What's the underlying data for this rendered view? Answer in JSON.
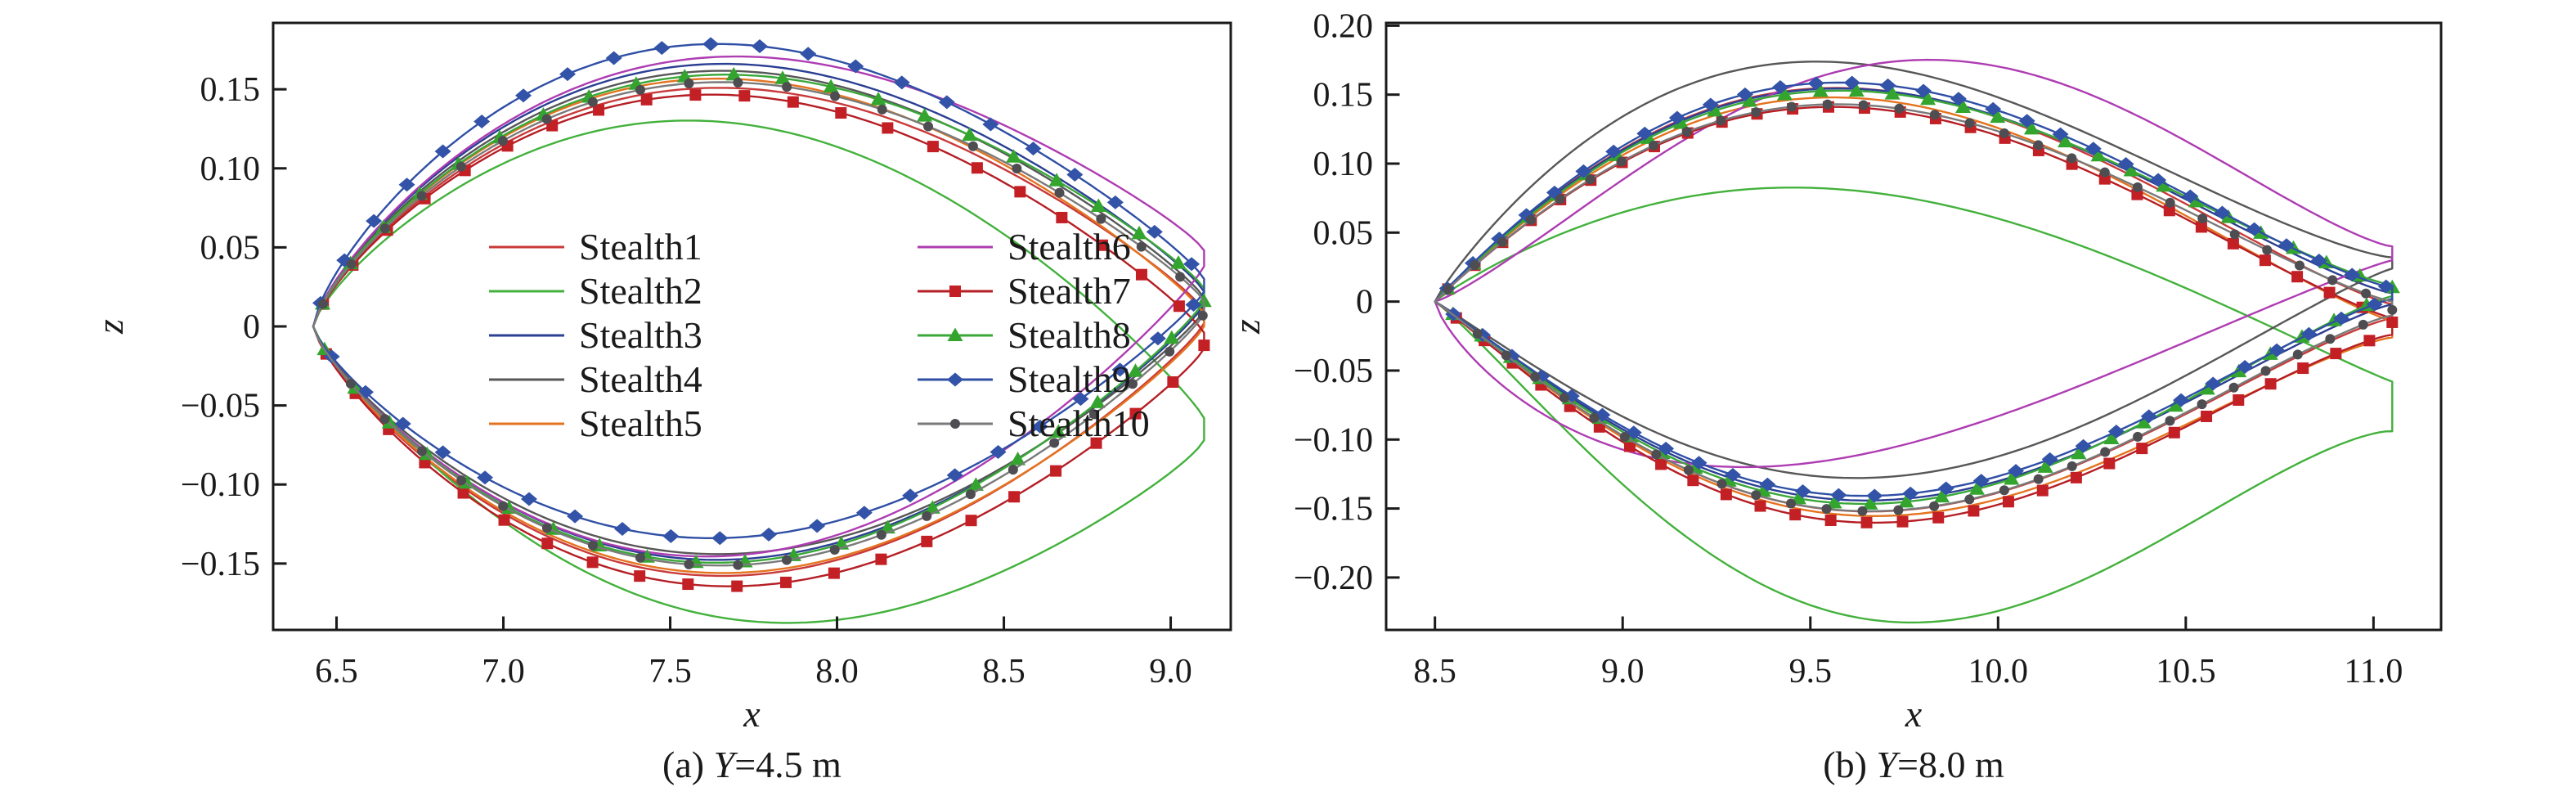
{
  "figure": {
    "background": "#ffffff",
    "text_color": "#1a1a1a",
    "frame_color": "#1a1a1a"
  },
  "chart_data": [
    {
      "id": "a",
      "type": "line",
      "caption": {
        "prefix": "(a) ",
        "symbol": "Y",
        "rest": "=4.5 m"
      },
      "xlabel": "x",
      "ylabel": "z",
      "xlim": [
        6.31,
        9.18
      ],
      "ylim": [
        -0.192,
        0.192
      ],
      "grid": false,
      "xticks": [
        {
          "v": 6.5,
          "label": "6.5"
        },
        {
          "v": 7.0,
          "label": "7.0"
        },
        {
          "v": 7.5,
          "label": "7.5"
        },
        {
          "v": 8.0,
          "label": "8.0"
        },
        {
          "v": 8.5,
          "label": "8.5"
        },
        {
          "v": 9.0,
          "label": "9.0"
        }
      ],
      "yticks": [
        {
          "v": 0.15,
          "label": "0.15"
        },
        {
          "v": 0.1,
          "label": "0.10"
        },
        {
          "v": 0.05,
          "label": "0.05"
        },
        {
          "v": 0,
          "label": "0"
        },
        {
          "v": -0.05,
          "label": "−0.05"
        },
        {
          "v": -0.1,
          "label": "−0.10"
        },
        {
          "v": -0.15,
          "label": "−0.15"
        }
      ],
      "legend": {
        "show": true,
        "columns": 2,
        "position": "inside-center"
      },
      "outline_model": "airfoil section outline: x(t)=x_le+(x_te-x_le)*t ; z(t)=z_peak*sin(pi*t^a)^sharp + z_te*t^3, a=ln(0.5)/ln(peak_frac)",
      "x_le": 6.43,
      "x_te": 9.1,
      "defaults": {
        "up_frac": 0.45,
        "lo_frac": 0.46,
        "up_sharp": 0.85,
        "lo_sharp": 0.85
      },
      "marker_spacing_px": 60,
      "series": [
        {
          "name": "Stealth1",
          "color": "#c93a3a",
          "marker": "none",
          "z_up_max": 0.15,
          "z_lo_min": -0.158,
          "z_te_up": 0.01,
          "z_te_lo": 0.002
        },
        {
          "name": "Stealth2",
          "color": "#43b13c",
          "marker": "none",
          "z_up_max": 0.135,
          "z_lo_min": -0.178,
          "z_te_up": -0.058,
          "z_te_lo": -0.072,
          "lo_frac": 0.49
        },
        {
          "name": "Stealth3",
          "color": "#2b3f93",
          "marker": "none",
          "z_up_max": 0.164,
          "z_lo_min": -0.149,
          "z_te_up": 0.022,
          "z_te_lo": 0.014
        },
        {
          "name": "Stealth4",
          "color": "#575757",
          "marker": "none",
          "z_up_max": 0.16,
          "z_lo_min": -0.145,
          "z_te_up": 0.018,
          "z_te_lo": 0.01
        },
        {
          "name": "Stealth5",
          "color": "#e4731f",
          "marker": "none",
          "z_up_max": 0.156,
          "z_lo_min": -0.156,
          "z_te_up": 0.008,
          "z_te_lo": 0.0
        },
        {
          "name": "Stealth6",
          "color": "#ae3cb2",
          "marker": "none",
          "z_up_max": 0.166,
          "z_lo_min": -0.149,
          "z_te_up": 0.048,
          "z_te_lo": 0.038
        },
        {
          "name": "Stealth7",
          "color": "#b51e24",
          "marker": "square",
          "marker_color": "#c32026",
          "z_up_max": 0.147,
          "z_lo_min": -0.163,
          "z_te_up": -0.004,
          "z_te_lo": -0.014
        },
        {
          "name": "Stealth8",
          "color": "#3aa739",
          "marker": "triangle",
          "marker_color": "#33a52e",
          "z_up_max": 0.157,
          "z_lo_min": -0.151,
          "z_te_up": 0.024,
          "z_te_lo": 0.016
        },
        {
          "name": "Stealth9",
          "color": "#2f4fa5",
          "marker": "diamond",
          "marker_color": "#3353a8",
          "z_up_max": 0.176,
          "z_lo_min": -0.136,
          "z_te_up": 0.03,
          "z_te_lo": 0.022,
          "up_frac": 0.44
        },
        {
          "name": "Stealth10",
          "color": "#7a7a7a",
          "marker": "circle",
          "marker_color": "#4d4d52",
          "z_up_max": 0.153,
          "z_lo_min": -0.152,
          "z_te_up": 0.016,
          "z_te_lo": 0.008
        }
      ]
    },
    {
      "id": "b",
      "type": "line",
      "caption": {
        "prefix": "(b) ",
        "symbol": "Y",
        "rest": "=8.0 m"
      },
      "xlabel": "x",
      "ylabel": "z",
      "xlim": [
        8.37,
        11.18
      ],
      "ylim": [
        -0.238,
        0.202
      ],
      "grid": false,
      "xticks": [
        {
          "v": 8.5,
          "label": "8.5"
        },
        {
          "v": 9.0,
          "label": "9.0"
        },
        {
          "v": 9.5,
          "label": "9.5"
        },
        {
          "v": 10.0,
          "label": "10.0"
        },
        {
          "v": 10.5,
          "label": "10.5"
        },
        {
          "v": 11.0,
          "label": "11.0"
        }
      ],
      "yticks": [
        {
          "v": 0.2,
          "label": "0.20"
        },
        {
          "v": 0.15,
          "label": "0.15"
        },
        {
          "v": 0.1,
          "label": "0.10"
        },
        {
          "v": 0.05,
          "label": "0.05"
        },
        {
          "v": 0,
          "label": "0"
        },
        {
          "v": -0.05,
          "label": "−0.05"
        },
        {
          "v": -0.1,
          "label": "−0.10"
        },
        {
          "v": -0.15,
          "label": "−0.15"
        },
        {
          "v": -0.2,
          "label": "−0.20"
        }
      ],
      "legend": {
        "show": false
      },
      "outline_model": "airfoil section outline: x(t)=x_le+(x_te-x_le)*t ; z(t)=z_peak*sin(pi*t^a)^sharp + z_te*t^3, a=ln(0.5)/ln(peak_frac)",
      "x_le": 8.5,
      "x_te": 11.05,
      "defaults": {
        "up_frac": 0.42,
        "lo_frac": 0.45,
        "up_sharp": 1.2,
        "lo_sharp": 1.2
      },
      "marker_spacing_px": 44,
      "series": [
        {
          "name": "Stealth1",
          "color": "#c93a3a",
          "marker": "none",
          "z_up_max": 0.155,
          "z_lo_min": -0.151,
          "z_te_up": -0.002,
          "z_te_lo": -0.012
        },
        {
          "name": "Stealth2",
          "color": "#43b13c",
          "marker": "none",
          "z_up_max": 0.086,
          "z_lo_min": -0.222,
          "z_te_up": -0.058,
          "z_te_lo": -0.094,
          "up_frac": 0.4,
          "lo_frac": 0.47
        },
        {
          "name": "Stealth3",
          "color": "#2b3f93",
          "marker": "none",
          "z_up_max": 0.154,
          "z_lo_min": -0.144,
          "z_te_up": 0.006,
          "z_te_lo": -0.002
        },
        {
          "name": "Stealth4",
          "color": "#575757",
          "marker": "none",
          "z_up_max": 0.172,
          "z_lo_min": -0.13,
          "z_te_up": 0.032,
          "z_te_lo": 0.024,
          "up_frac": 0.39
        },
        {
          "name": "Stealth5",
          "color": "#e4731f",
          "marker": "none",
          "z_up_max": 0.149,
          "z_lo_min": -0.153,
          "z_te_up": -0.014,
          "z_te_lo": -0.026
        },
        {
          "name": "Stealth6",
          "color": "#ae3cb2",
          "marker": "none",
          "z_up_max": 0.17,
          "z_lo_min": -0.121,
          "z_te_up": 0.04,
          "z_te_lo": 0.03,
          "up_frac": 0.5,
          "lo_frac": 0.33
        },
        {
          "name": "Stealth7",
          "color": "#b51e24",
          "marker": "square",
          "marker_color": "#c32026",
          "z_up_max": 0.142,
          "z_lo_min": -0.158,
          "z_te_up": -0.012,
          "z_te_lo": -0.024
        },
        {
          "name": "Stealth8",
          "color": "#3aa739",
          "marker": "triangle",
          "marker_color": "#33a52e",
          "z_up_max": 0.152,
          "z_lo_min": -0.147,
          "z_te_up": 0.012,
          "z_te_lo": 0.004
        },
        {
          "name": "Stealth9",
          "color": "#2f4fa5",
          "marker": "diamond",
          "marker_color": "#3353a8",
          "z_up_max": 0.158,
          "z_lo_min": -0.141,
          "z_te_up": 0.01,
          "z_te_lo": 0.002
        },
        {
          "name": "Stealth10",
          "color": "#7a7a7a",
          "marker": "circle",
          "marker_color": "#4d4d52",
          "z_up_max": 0.143,
          "z_lo_min": -0.151,
          "z_te_up": 0.0,
          "z_te_lo": -0.01
        }
      ]
    }
  ]
}
